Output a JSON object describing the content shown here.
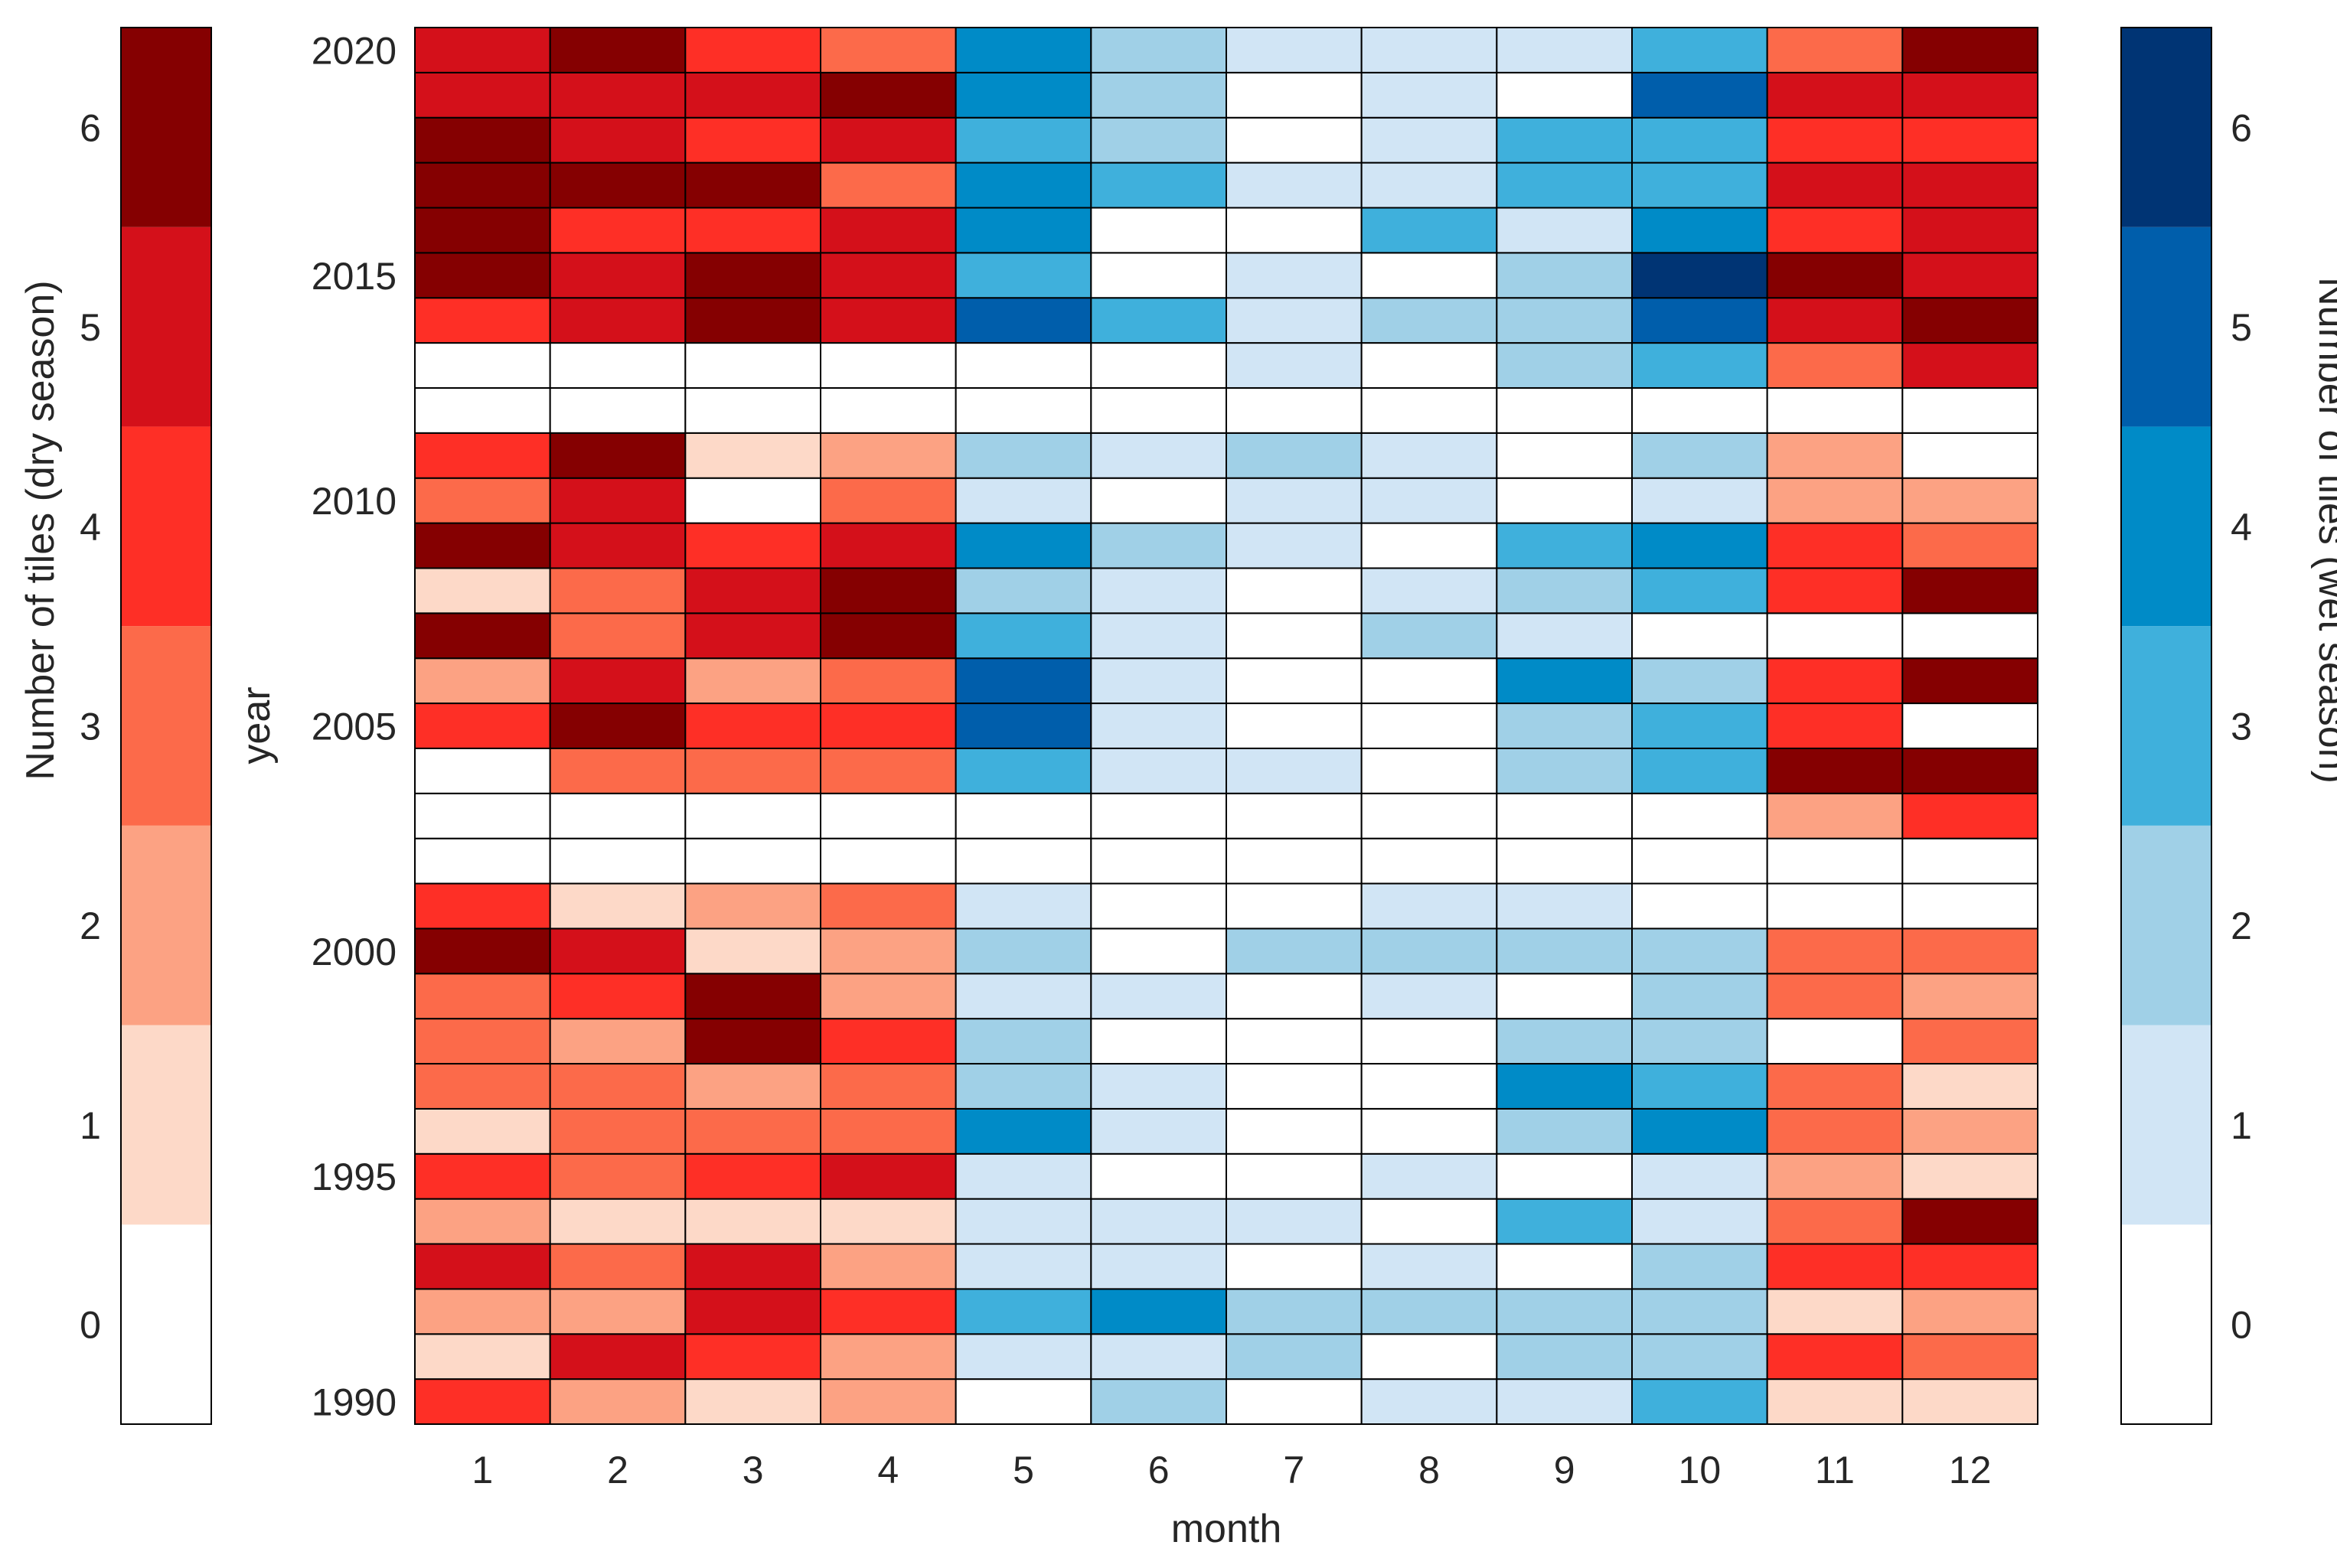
{
  "chart_data": {
    "type": "heatmap",
    "xlabel": "month",
    "ylabel": "year",
    "x": [
      1,
      2,
      3,
      4,
      5,
      6,
      7,
      8,
      9,
      10,
      11,
      12
    ],
    "y": [
      1990,
      1991,
      1992,
      1993,
      1994,
      1995,
      1996,
      1997,
      1998,
      1999,
      2000,
      2001,
      2002,
      2003,
      2004,
      2005,
      2006,
      2007,
      2008,
      2009,
      2010,
      2011,
      2012,
      2013,
      2014,
      2015,
      2016,
      2017,
      2018,
      2019,
      2020
    ],
    "x_tick_labels": [
      "1",
      "2",
      "3",
      "4",
      "5",
      "6",
      "7",
      "8",
      "9",
      "10",
      "11",
      "12"
    ],
    "y_tick_labels": [
      "1990",
      "1995",
      "2000",
      "2005",
      "2010",
      "2015",
      "2020"
    ],
    "dry_season_months": [
      1,
      2,
      3,
      4,
      11,
      12
    ],
    "wet_season_months": [
      5,
      6,
      7,
      8,
      9,
      10
    ],
    "values": [
      [
        4,
        2,
        1,
        2,
        0,
        2,
        0,
        1,
        1,
        3,
        1,
        1
      ],
      [
        1,
        5,
        4,
        2,
        1,
        1,
        2,
        0,
        2,
        2,
        4,
        3
      ],
      [
        2,
        2,
        5,
        4,
        3,
        4,
        2,
        2,
        2,
        2,
        1,
        2
      ],
      [
        5,
        3,
        5,
        2,
        1,
        1,
        0,
        1,
        0,
        2,
        4,
        4
      ],
      [
        2,
        1,
        1,
        1,
        1,
        1,
        1,
        0,
        3,
        1,
        3,
        6
      ],
      [
        4,
        3,
        4,
        5,
        1,
        0,
        0,
        1,
        0,
        1,
        2,
        1
      ],
      [
        1,
        3,
        3,
        3,
        4,
        1,
        0,
        0,
        2,
        4,
        3,
        2
      ],
      [
        3,
        3,
        2,
        3,
        2,
        1,
        0,
        0,
        4,
        3,
        3,
        1
      ],
      [
        3,
        2,
        6,
        4,
        2,
        0,
        0,
        0,
        2,
        2,
        0,
        3
      ],
      [
        3,
        4,
        6,
        2,
        1,
        1,
        0,
        1,
        0,
        2,
        3,
        2
      ],
      [
        6,
        5,
        1,
        2,
        2,
        0,
        2,
        2,
        2,
        2,
        3,
        3
      ],
      [
        4,
        1,
        2,
        3,
        1,
        0,
        0,
        1,
        1,
        0,
        0,
        0
      ],
      [
        0,
        0,
        0,
        0,
        0,
        0,
        0,
        0,
        0,
        0,
        0,
        0
      ],
      [
        0,
        0,
        0,
        0,
        0,
        0,
        0,
        0,
        0,
        0,
        2,
        4
      ],
      [
        0,
        3,
        3,
        3,
        3,
        1,
        1,
        0,
        2,
        3,
        6,
        6
      ],
      [
        4,
        6,
        4,
        4,
        5,
        1,
        0,
        0,
        2,
        3,
        4,
        0
      ],
      [
        2,
        5,
        2,
        3,
        5,
        1,
        0,
        0,
        4,
        2,
        4,
        6
      ],
      [
        6,
        3,
        5,
        6,
        3,
        1,
        0,
        2,
        1,
        0,
        0,
        0
      ],
      [
        1,
        3,
        5,
        6,
        2,
        1,
        0,
        1,
        2,
        3,
        4,
        6
      ],
      [
        6,
        5,
        4,
        5,
        4,
        2,
        1,
        0,
        3,
        4,
        4,
        3
      ],
      [
        3,
        5,
        0,
        3,
        1,
        0,
        1,
        1,
        0,
        1,
        2,
        2
      ],
      [
        4,
        6,
        1,
        2,
        2,
        1,
        2,
        1,
        0,
        2,
        2,
        0
      ],
      [
        0,
        0,
        0,
        0,
        0,
        0,
        0,
        0,
        0,
        0,
        0,
        0
      ],
      [
        0,
        0,
        0,
        0,
        0,
        0,
        1,
        0,
        2,
        3,
        3,
        5
      ],
      [
        4,
        5,
        6,
        5,
        5,
        3,
        1,
        2,
        2,
        5,
        5,
        6
      ],
      [
        6,
        5,
        6,
        5,
        3,
        0,
        1,
        0,
        2,
        6,
        6,
        5
      ],
      [
        6,
        4,
        4,
        5,
        4,
        0,
        0,
        3,
        1,
        4,
        4,
        5
      ],
      [
        6,
        6,
        6,
        3,
        4,
        3,
        1,
        1,
        3,
        3,
        5,
        5
      ],
      [
        6,
        5,
        4,
        5,
        3,
        2,
        0,
        1,
        3,
        3,
        4,
        4
      ],
      [
        5,
        5,
        5,
        6,
        4,
        2,
        0,
        1,
        0,
        5,
        5,
        5
      ],
      [
        5,
        6,
        4,
        3,
        4,
        2,
        1,
        1,
        1,
        3,
        3,
        6
      ]
    ],
    "colorbars": [
      {
        "name": "dry",
        "label": "Number of tiles (dry season)",
        "placement": "left",
        "ticks": [
          "0",
          "1",
          "2",
          "3",
          "4",
          "5",
          "6"
        ],
        "colors": [
          "#ffffff",
          "#fdd9c8",
          "#fca283",
          "#fc6a4a",
          "#fe2f26",
          "#d4101a",
          "#850001"
        ]
      },
      {
        "name": "wet",
        "label": "Number of tiles (wet season)",
        "placement": "right",
        "ticks": [
          "0",
          "1",
          "2",
          "3",
          "4",
          "5",
          "6"
        ],
        "colors": [
          "#ffffff",
          "#d1e5f5",
          "#a0d0e7",
          "#3fb0dc",
          "#008bc7",
          "#005eab",
          "#003474"
        ]
      }
    ],
    "grid": false,
    "cell_border_color": "#000000"
  }
}
